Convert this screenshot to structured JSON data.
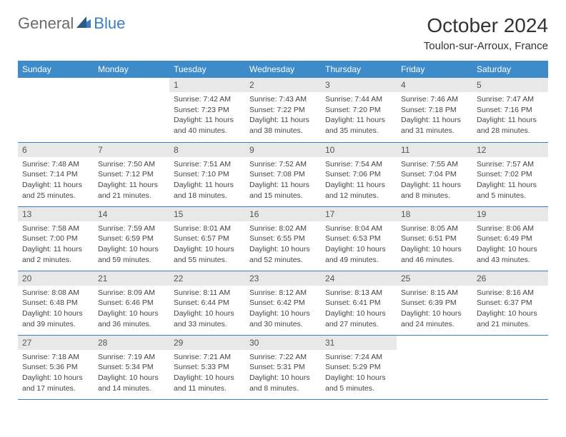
{
  "logo": {
    "general": "General",
    "blue": "Blue"
  },
  "header": {
    "month_title": "October 2024",
    "location": "Toulon-sur-Arroux, France"
  },
  "colors": {
    "header_bg": "#3d8cc9",
    "border": "#3d7cc9",
    "day_number_bg": "#e8e8e8",
    "text": "#444444",
    "logo_gray": "#6b6b6b",
    "logo_blue": "#3d7cc9"
  },
  "weekdays": [
    "Sunday",
    "Monday",
    "Tuesday",
    "Wednesday",
    "Thursday",
    "Friday",
    "Saturday"
  ],
  "weeks": [
    [
      null,
      null,
      {
        "day": "1",
        "sunrise": "7:42 AM",
        "sunset": "7:23 PM",
        "daylight": "11 hours and 40 minutes."
      },
      {
        "day": "2",
        "sunrise": "7:43 AM",
        "sunset": "7:22 PM",
        "daylight": "11 hours and 38 minutes."
      },
      {
        "day": "3",
        "sunrise": "7:44 AM",
        "sunset": "7:20 PM",
        "daylight": "11 hours and 35 minutes."
      },
      {
        "day": "4",
        "sunrise": "7:46 AM",
        "sunset": "7:18 PM",
        "daylight": "11 hours and 31 minutes."
      },
      {
        "day": "5",
        "sunrise": "7:47 AM",
        "sunset": "7:16 PM",
        "daylight": "11 hours and 28 minutes."
      }
    ],
    [
      {
        "day": "6",
        "sunrise": "7:48 AM",
        "sunset": "7:14 PM",
        "daylight": "11 hours and 25 minutes."
      },
      {
        "day": "7",
        "sunrise": "7:50 AM",
        "sunset": "7:12 PM",
        "daylight": "11 hours and 21 minutes."
      },
      {
        "day": "8",
        "sunrise": "7:51 AM",
        "sunset": "7:10 PM",
        "daylight": "11 hours and 18 minutes."
      },
      {
        "day": "9",
        "sunrise": "7:52 AM",
        "sunset": "7:08 PM",
        "daylight": "11 hours and 15 minutes."
      },
      {
        "day": "10",
        "sunrise": "7:54 AM",
        "sunset": "7:06 PM",
        "daylight": "11 hours and 12 minutes."
      },
      {
        "day": "11",
        "sunrise": "7:55 AM",
        "sunset": "7:04 PM",
        "daylight": "11 hours and 8 minutes."
      },
      {
        "day": "12",
        "sunrise": "7:57 AM",
        "sunset": "7:02 PM",
        "daylight": "11 hours and 5 minutes."
      }
    ],
    [
      {
        "day": "13",
        "sunrise": "7:58 AM",
        "sunset": "7:00 PM",
        "daylight": "11 hours and 2 minutes."
      },
      {
        "day": "14",
        "sunrise": "7:59 AM",
        "sunset": "6:59 PM",
        "daylight": "10 hours and 59 minutes."
      },
      {
        "day": "15",
        "sunrise": "8:01 AM",
        "sunset": "6:57 PM",
        "daylight": "10 hours and 55 minutes."
      },
      {
        "day": "16",
        "sunrise": "8:02 AM",
        "sunset": "6:55 PM",
        "daylight": "10 hours and 52 minutes."
      },
      {
        "day": "17",
        "sunrise": "8:04 AM",
        "sunset": "6:53 PM",
        "daylight": "10 hours and 49 minutes."
      },
      {
        "day": "18",
        "sunrise": "8:05 AM",
        "sunset": "6:51 PM",
        "daylight": "10 hours and 46 minutes."
      },
      {
        "day": "19",
        "sunrise": "8:06 AM",
        "sunset": "6:49 PM",
        "daylight": "10 hours and 43 minutes."
      }
    ],
    [
      {
        "day": "20",
        "sunrise": "8:08 AM",
        "sunset": "6:48 PM",
        "daylight": "10 hours and 39 minutes."
      },
      {
        "day": "21",
        "sunrise": "8:09 AM",
        "sunset": "6:46 PM",
        "daylight": "10 hours and 36 minutes."
      },
      {
        "day": "22",
        "sunrise": "8:11 AM",
        "sunset": "6:44 PM",
        "daylight": "10 hours and 33 minutes."
      },
      {
        "day": "23",
        "sunrise": "8:12 AM",
        "sunset": "6:42 PM",
        "daylight": "10 hours and 30 minutes."
      },
      {
        "day": "24",
        "sunrise": "8:13 AM",
        "sunset": "6:41 PM",
        "daylight": "10 hours and 27 minutes."
      },
      {
        "day": "25",
        "sunrise": "8:15 AM",
        "sunset": "6:39 PM",
        "daylight": "10 hours and 24 minutes."
      },
      {
        "day": "26",
        "sunrise": "8:16 AM",
        "sunset": "6:37 PM",
        "daylight": "10 hours and 21 minutes."
      }
    ],
    [
      {
        "day": "27",
        "sunrise": "7:18 AM",
        "sunset": "5:36 PM",
        "daylight": "10 hours and 17 minutes."
      },
      {
        "day": "28",
        "sunrise": "7:19 AM",
        "sunset": "5:34 PM",
        "daylight": "10 hours and 14 minutes."
      },
      {
        "day": "29",
        "sunrise": "7:21 AM",
        "sunset": "5:33 PM",
        "daylight": "10 hours and 11 minutes."
      },
      {
        "day": "30",
        "sunrise": "7:22 AM",
        "sunset": "5:31 PM",
        "daylight": "10 hours and 8 minutes."
      },
      {
        "day": "31",
        "sunrise": "7:24 AM",
        "sunset": "5:29 PM",
        "daylight": "10 hours and 5 minutes."
      },
      null,
      null
    ]
  ]
}
